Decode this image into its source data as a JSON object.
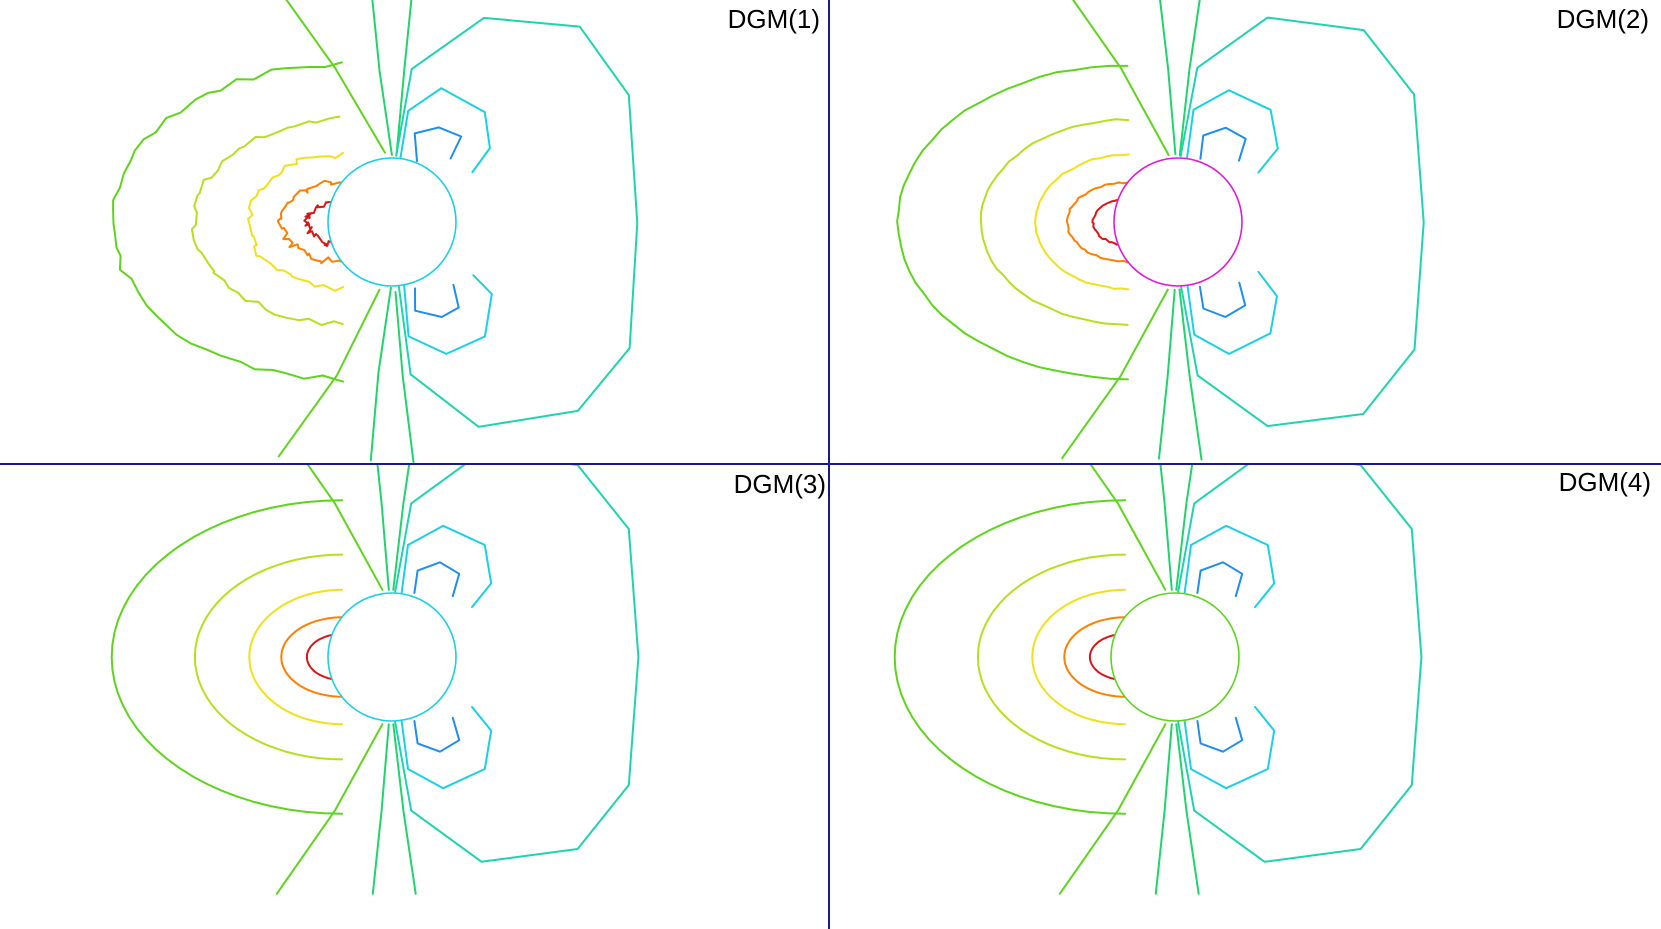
{
  "panels": [
    {
      "label": "DGM(1)"
    },
    {
      "label": "DGM(2)"
    },
    {
      "label": "DGM(3)"
    },
    {
      "label": "DGM(4)"
    }
  ],
  "colors": {
    "divider": "#1a1a8c",
    "levels": [
      "#d81818",
      "#ff7f00",
      "#f2e01a",
      "#b6e01e",
      "#5ed51c",
      "#1fd46c",
      "#1ed4b0",
      "#1ad0e6",
      "#1e8ef0",
      "#1848d8",
      "#e01ad8"
    ]
  }
}
